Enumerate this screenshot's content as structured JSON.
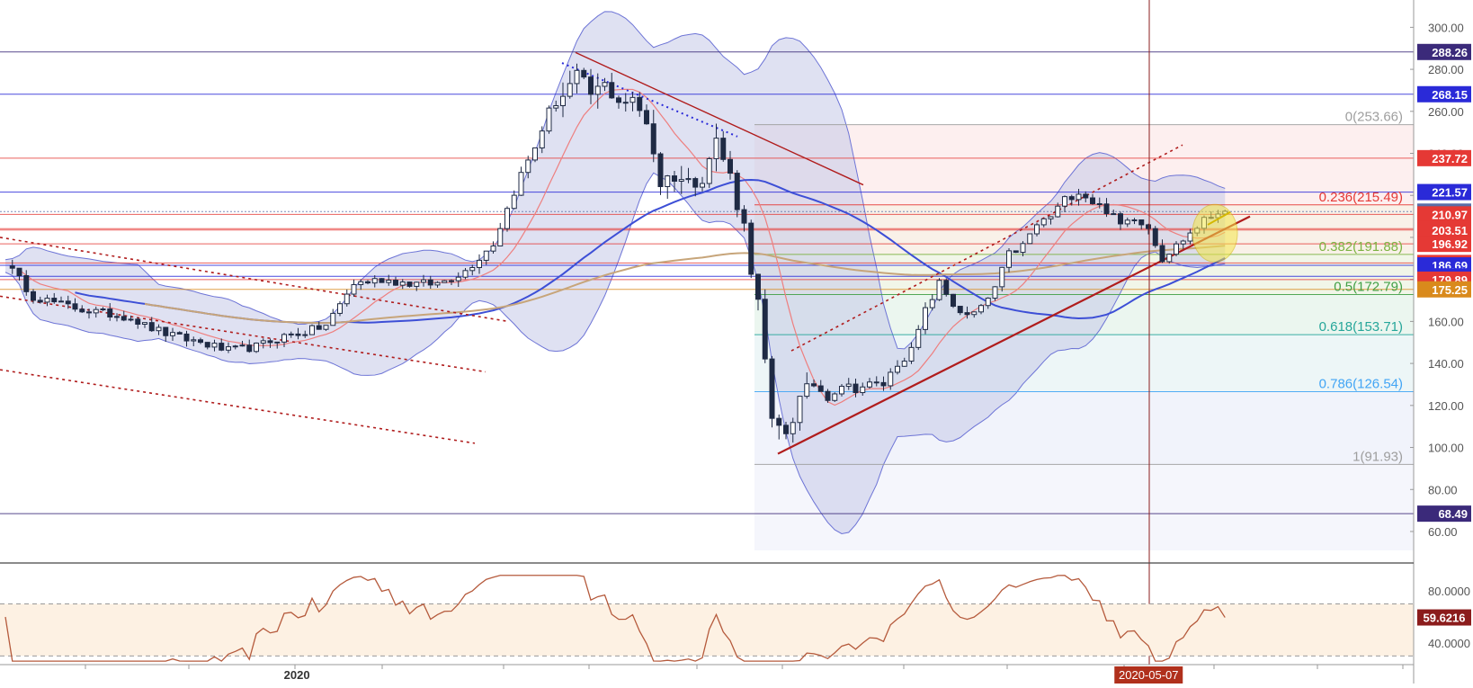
{
  "chart_data": {
    "type": "candlestick",
    "main_axis": {
      "ylim": [
        51,
        313
      ],
      "tick_labels": [
        "300.00",
        "280.00",
        "260.00",
        "240.00",
        "220.00",
        "200.00",
        "180.00",
        "160.00",
        "140.00",
        "120.00",
        "100.00",
        "80.00",
        "60.00"
      ],
      "tick_values": [
        300,
        280,
        260,
        240,
        220,
        200,
        180,
        160,
        140,
        120,
        100,
        80,
        60
      ],
      "grid": true
    },
    "x_axis": {
      "labels": [
        {
          "text": "2020",
          "pos": 0.21
        },
        {
          "text": "2020-05-07",
          "pos": 0.8125,
          "highlighted": true
        }
      ]
    },
    "horizontal_levels": [
      {
        "value": 288.26,
        "label": "288.26",
        "color": "#3b2a7a"
      },
      {
        "value": 268.15,
        "label": "268.15",
        "color": "#2a2ad8"
      },
      {
        "value": 237.72,
        "label": "237.72",
        "color": "#e53935"
      },
      {
        "value": 221.57,
        "label": "221.57",
        "color": "#2a2ad8"
      },
      {
        "value": 212.28,
        "label": "212.28",
        "color": "#5a6ea8"
      },
      {
        "value": 210.97,
        "label": "210.97",
        "color": "#e53935"
      },
      {
        "value": 204.13,
        "label": "204.13",
        "color": "#e53935"
      },
      {
        "value": 203.51,
        "label": "203.51",
        "color": "#e53935"
      },
      {
        "value": 196.92,
        "label": "196.92",
        "color": "#e53935"
      },
      {
        "value": 187.82,
        "label": "187.82",
        "color": "#e53935"
      },
      {
        "value": 186.69,
        "label": "186.69",
        "color": "#2a2ad8"
      },
      {
        "value": 181.48,
        "label": "181.48",
        "color": "#2a2ad8"
      },
      {
        "value": 179.89,
        "label": "179.89",
        "color": "#e53935"
      },
      {
        "value": 175.25,
        "label": "175.25",
        "color": "#d98a1c"
      },
      {
        "value": 68.49,
        "label": "68.49",
        "color": "#3b2a7a"
      }
    ],
    "fibonacci": {
      "levels": [
        {
          "ratio": "0",
          "value": 253.66,
          "label": "0(253.66)",
          "color": "#9e9e9e"
        },
        {
          "ratio": "0.236",
          "value": 215.49,
          "label": "0.236(215.49)",
          "color": "#e53935"
        },
        {
          "ratio": "0.382",
          "value": 191.88,
          "label": "0.382(191.88)",
          "color": "#7cb342"
        },
        {
          "ratio": "0.5",
          "value": 172.79,
          "label": "0.5(172.79)",
          "color": "#43a047"
        },
        {
          "ratio": "0.618",
          "value": 153.71,
          "label": "0.618(153.71)",
          "color": "#26a69a"
        },
        {
          "ratio": "0.786",
          "value": 126.54,
          "label": "0.786(126.54)",
          "color": "#42a5f5"
        },
        {
          "ratio": "1",
          "value": 91.93,
          "label": "1(91.93)",
          "color": "#9e9e9e"
        }
      ]
    },
    "oscillator": {
      "ylim": [
        24,
        96
      ],
      "tick_labels": [
        "80.0000",
        "40.0000"
      ],
      "tick_values": [
        80,
        40
      ],
      "band_upper": 70,
      "band_lower": 30,
      "current_label": "59.6216",
      "current_value": 59.6216
    },
    "colors": {
      "candle": "#1f2a44",
      "bollinger_fill": "#c5c8e8",
      "bollinger_line": "#6d74d6",
      "ma_fast": "#ee7f7f",
      "ma_mid": "#3d4fd6",
      "ma_slow": "#c7a57a",
      "trend": "#b01c1c",
      "rsi": "#b55a3c",
      "band_fill": "#fdf1e3",
      "highlight": "#f4e64a"
    }
  }
}
